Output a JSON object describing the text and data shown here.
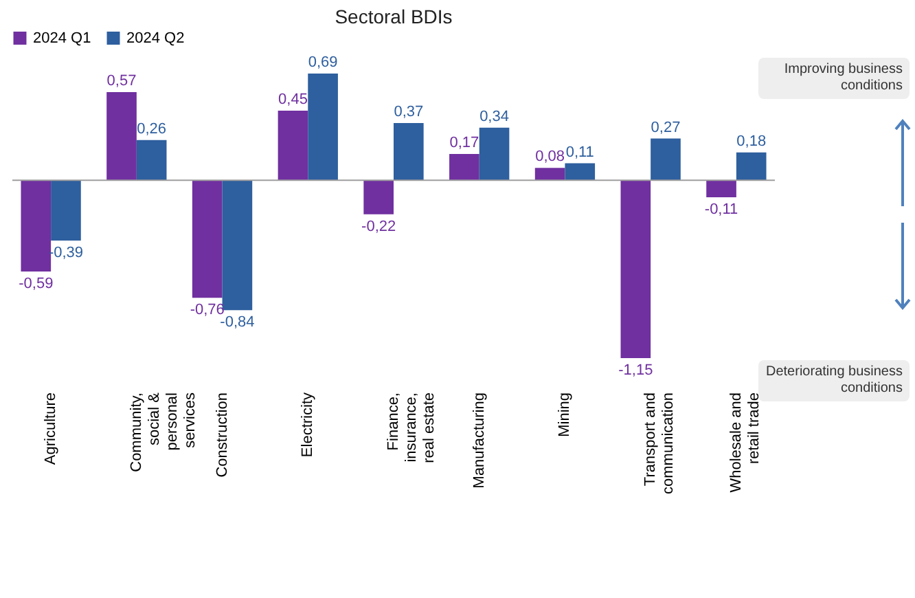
{
  "chart_data": {
    "type": "bar",
    "title": "Sectoral BDIs",
    "categories": [
      "Agriculture",
      "Community, social & personal services",
      "Construction",
      "Electricity",
      "Finance, insurance, real estate",
      "Manufacturing",
      "Mining",
      "Transport and communication",
      "Wholesale and retail trade"
    ],
    "series": [
      {
        "name": "2024 Q1",
        "color": "#7030a0",
        "values": [
          -0.59,
          0.57,
          -0.76,
          0.45,
          -0.22,
          0.17,
          0.08,
          -1.15,
          -0.11
        ],
        "value_labels": [
          "-0,59",
          "0,57",
          "-0,76",
          "0,45",
          "-0,22",
          "0,17",
          "0,08",
          "-1,15",
          "-0,11"
        ]
      },
      {
        "name": "2024 Q2",
        "color": "#2e5f9e",
        "values": [
          -0.39,
          0.26,
          -0.84,
          0.69,
          0.37,
          0.34,
          0.11,
          0.27,
          0.18
        ],
        "value_labels": [
          "-0,39",
          "0,26",
          "-0,84",
          "0,69",
          "0,37",
          "0,34",
          "0,11",
          "0,27",
          "0,18"
        ]
      }
    ],
    "legend": "top",
    "grid": false,
    "annotations": [
      "Improving business conditions",
      "Deteriorating business conditions"
    ]
  }
}
